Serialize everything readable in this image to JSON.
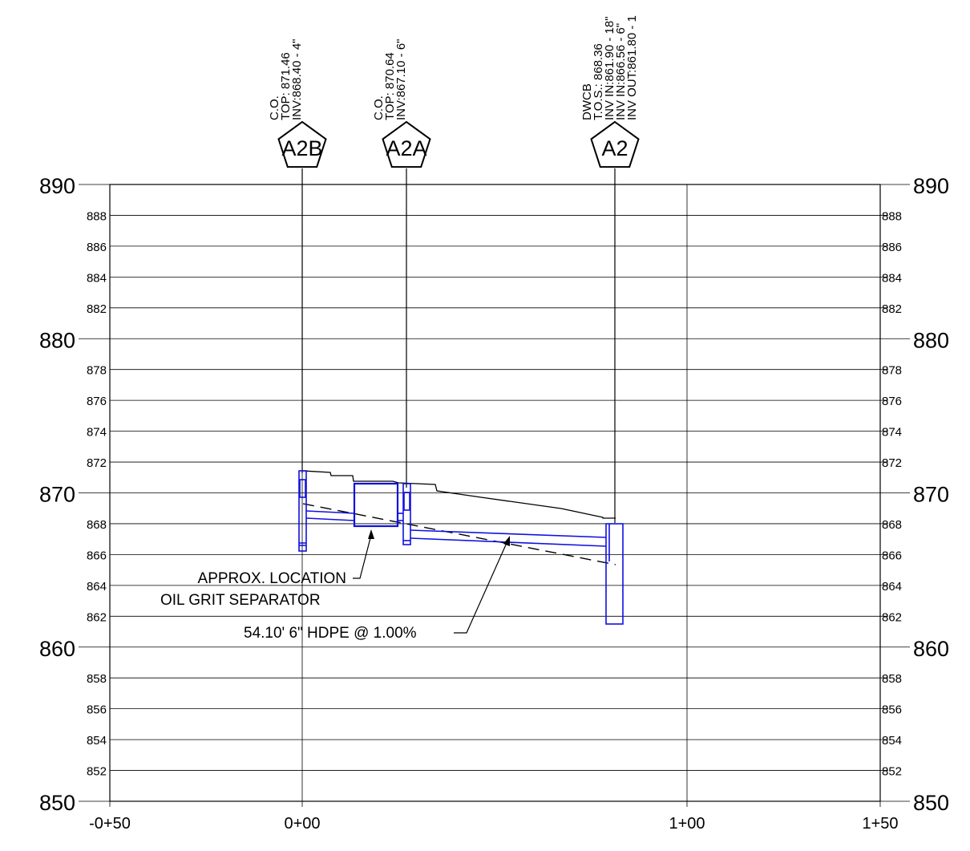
{
  "profile": {
    "station_ticks": [
      "-0+50",
      "0+00",
      "1+00",
      "1+50"
    ],
    "elevation_major": [
      890,
      880,
      870,
      860,
      850
    ],
    "elevation_minor": [
      888,
      886,
      884,
      882,
      878,
      876,
      874,
      872,
      868,
      866,
      864,
      862,
      858,
      856,
      854,
      852
    ]
  },
  "structures": [
    {
      "id": "A2B",
      "lines": [
        "C.O.",
        "TOP: 871.46",
        "INV:868.40 - 4\""
      ]
    },
    {
      "id": "A2A",
      "lines": [
        "C.O.",
        "TOP: 870.64",
        "INV:867.10 - 6\""
      ]
    },
    {
      "id": "A2",
      "lines": [
        "DWCB",
        "T.O.S.: 868.36",
        "INV IN:861.90 - 18\"",
        "INV IN:866.56 - 6\"",
        "INV OUT:861.80 - 1"
      ]
    }
  ],
  "annotations": {
    "ogs_line1": "APPROX. LOCATION",
    "ogs_line2": "OIL GRIT SEPARATOR",
    "pipe_label": "54.10' 6\" HDPE @ 1.00%"
  },
  "colors": {
    "pipe": "#1010e0",
    "grid": "#000000"
  }
}
